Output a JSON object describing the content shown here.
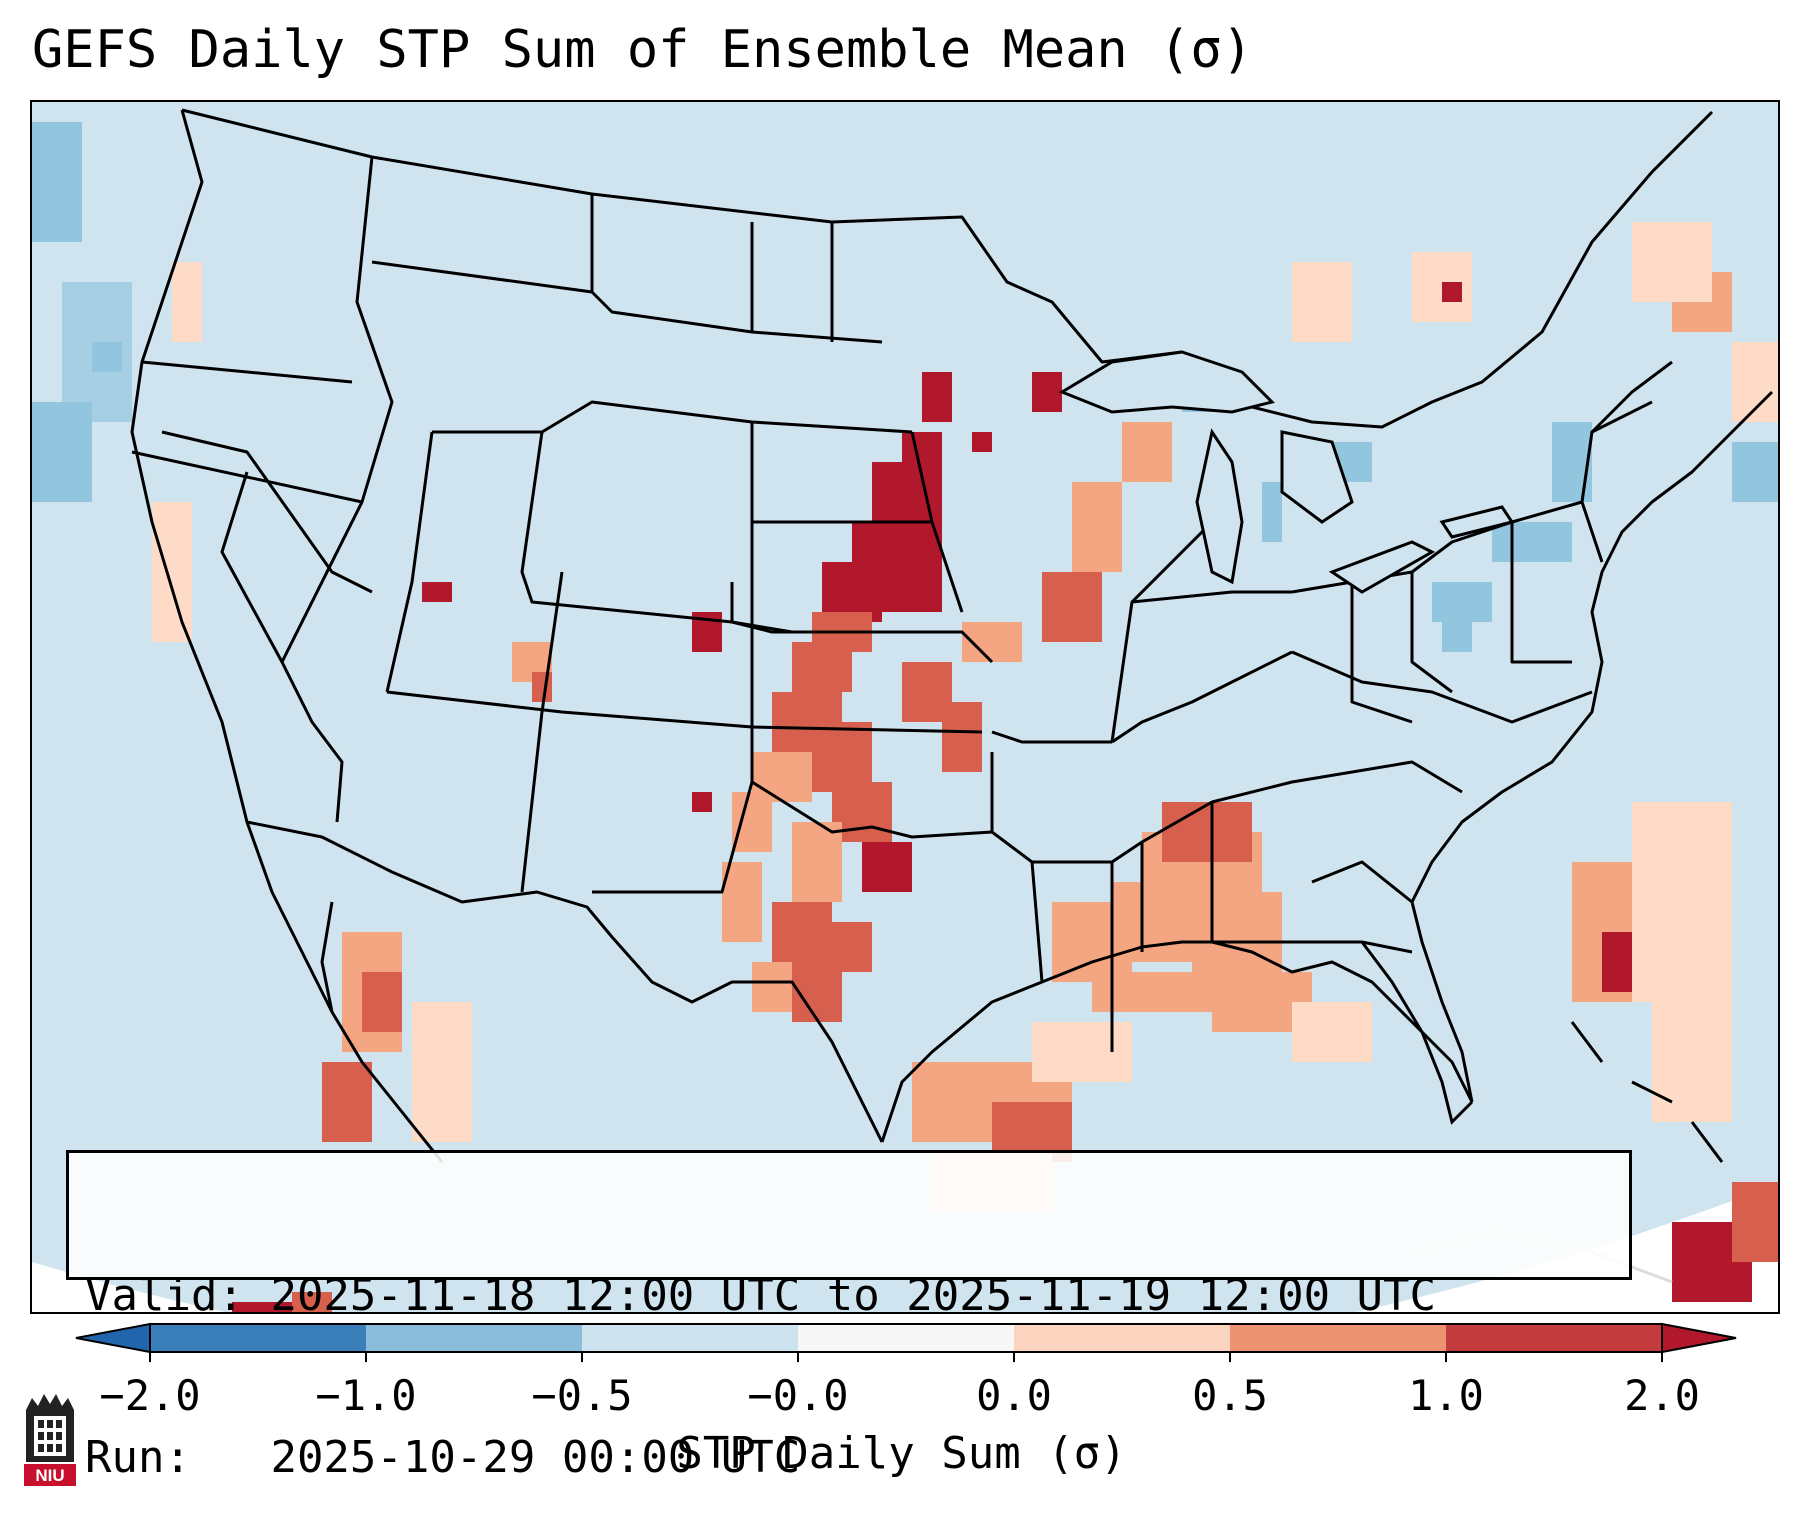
{
  "title": "GEFS Daily STP Sum of Ensemble Mean (σ)",
  "info": {
    "valid_label": "Valid:",
    "valid_value": "2025-11-18 12:00 UTC to 2025-11-19 12:00 UTC",
    "run_label": "Run:",
    "run_value": "2025-10-29 00:00 UTC"
  },
  "colorbar": {
    "label": "STP Daily Sum (σ)",
    "ticks": [
      "−2.0",
      "−1.0",
      "−0.5",
      "−0.0",
      "0.0",
      "0.5",
      "1.0",
      "2.0"
    ],
    "colors": [
      "#3a7fba",
      "#8bbddb",
      "#cde3ef",
      "#f7f7f7",
      "#fbd4c0",
      "#ee9274",
      "#c33b3c"
    ],
    "extend_colors": {
      "low": "#2166ac",
      "high": "#b2182b"
    }
  },
  "map": {
    "projection": "Lambert Conformal Conic",
    "extent": "Continental United States",
    "background_color": "#cfe4ef",
    "boundaries": [
      "coastlines",
      "country borders",
      "state borders"
    ]
  },
  "logo": {
    "text": "NIU"
  }
}
